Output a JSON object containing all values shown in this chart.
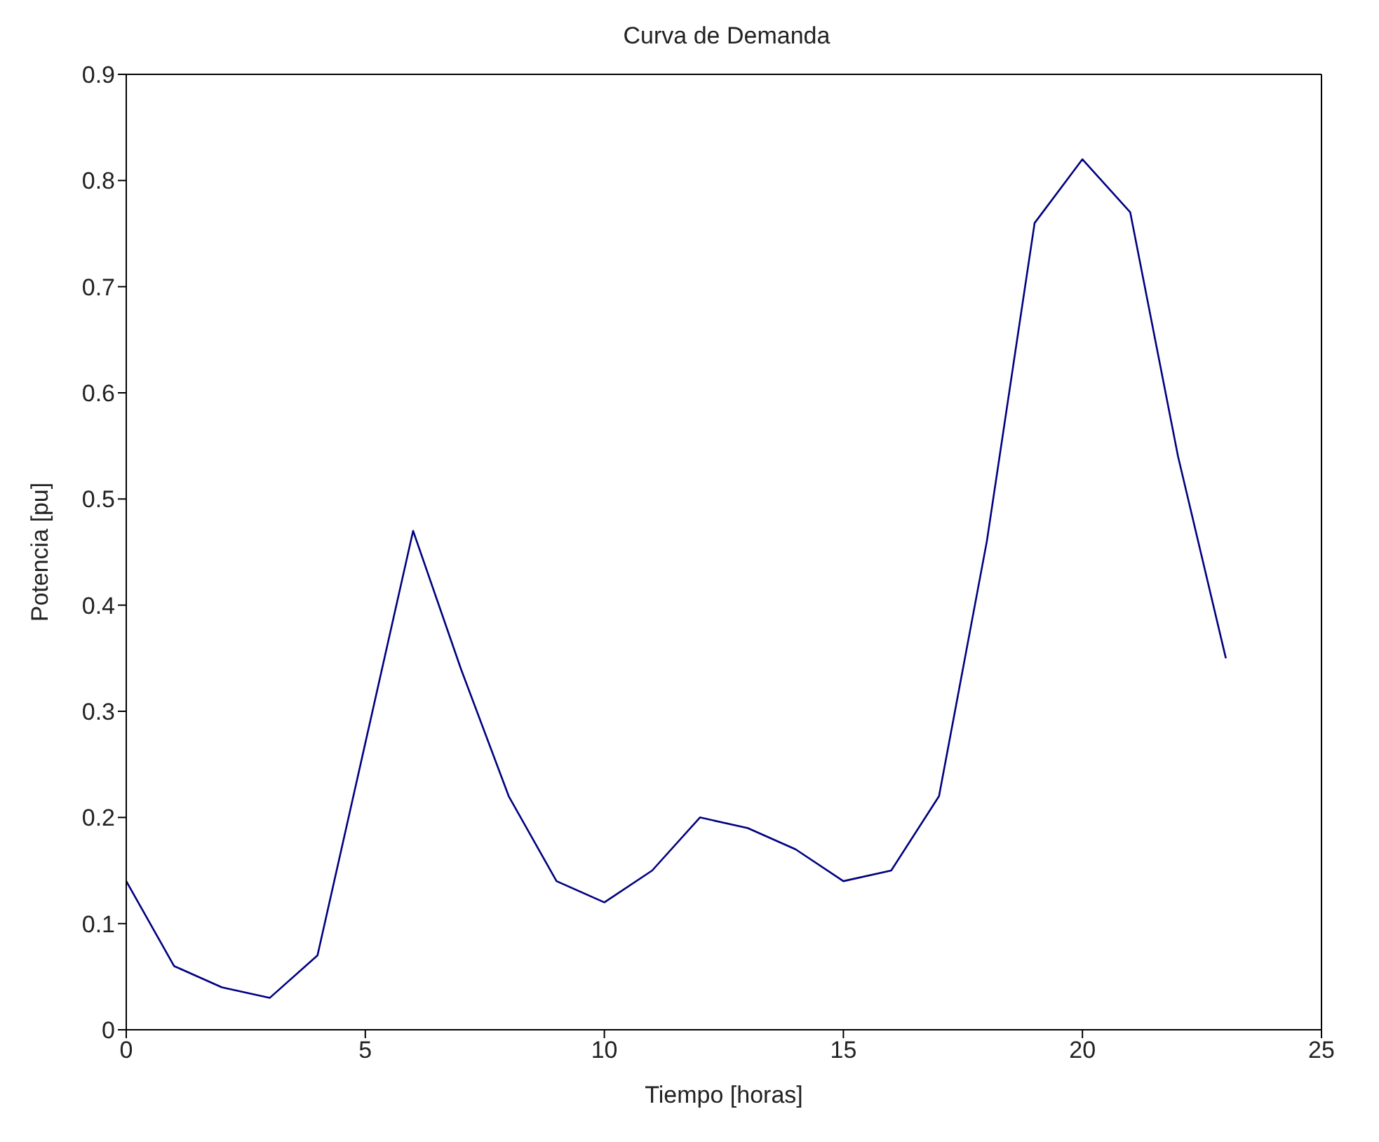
{
  "chart_data": {
    "type": "line",
    "title": "Curva de Demanda",
    "xlabel": "Tiempo [horas]",
    "ylabel": "Potencia [pu]",
    "x": [
      0,
      1,
      2,
      3,
      4,
      5,
      6,
      7,
      8,
      9,
      10,
      11,
      12,
      13,
      14,
      15,
      16,
      17,
      18,
      19,
      20,
      21,
      22,
      23
    ],
    "series": [
      {
        "color": "#000080",
        "values": [
          0.14,
          0.06,
          0.04,
          0.03,
          0.07,
          0.27,
          0.47,
          0.34,
          0.22,
          0.14,
          0.12,
          0.15,
          0.2,
          0.19,
          0.17,
          0.14,
          0.15,
          0.22,
          0.46,
          0.76,
          0.82,
          0.77,
          0.54,
          0.35
        ]
      }
    ],
    "xlim": [
      0,
      25
    ],
    "xticks": [
      0,
      5,
      10,
      15,
      20,
      25
    ],
    "ylim": [
      0,
      0.9
    ],
    "yticks": [
      0,
      0.1,
      0.2,
      0.3,
      0.4,
      0.5,
      0.6,
      0.7,
      0.8,
      0.9
    ],
    "grid": false,
    "legend": false,
    "marker": "none",
    "line_style": "solid"
  }
}
